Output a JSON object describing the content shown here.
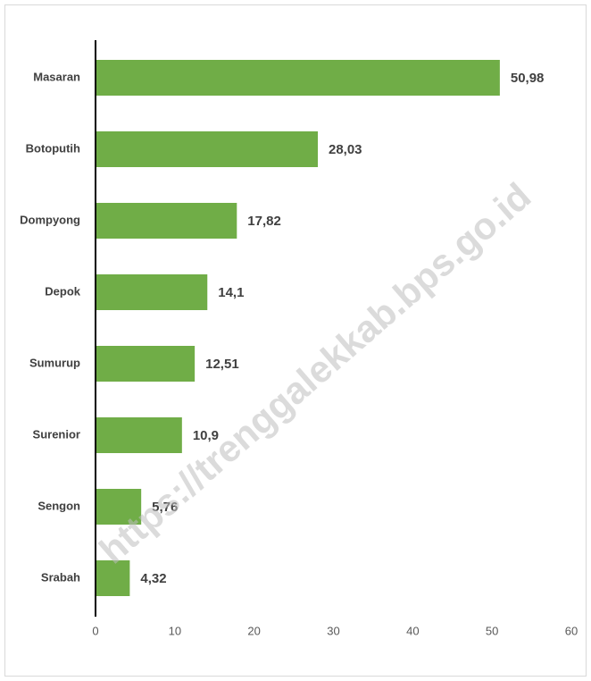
{
  "chart_data": {
    "type": "barh",
    "categories": [
      "Masaran",
      "Botoputih",
      "Dompyong",
      "Depok",
      "Sumurup",
      "Surenior",
      "Sengon",
      "Srabah"
    ],
    "values": [
      50.98,
      28.03,
      17.82,
      14.1,
      12.51,
      10.9,
      5.76,
      4.32
    ],
    "value_labels": [
      "50,98",
      "28,03",
      "17,82",
      "14,1",
      "12,51",
      "10,9",
      "5,76",
      "4,32"
    ],
    "color": "#70ad47",
    "xlim": [
      0,
      60
    ],
    "xticks": [
      0,
      10,
      20,
      30,
      40,
      50,
      60
    ],
    "grid": false,
    "watermark": "https://trenggalekkab.bps.go.id"
  }
}
